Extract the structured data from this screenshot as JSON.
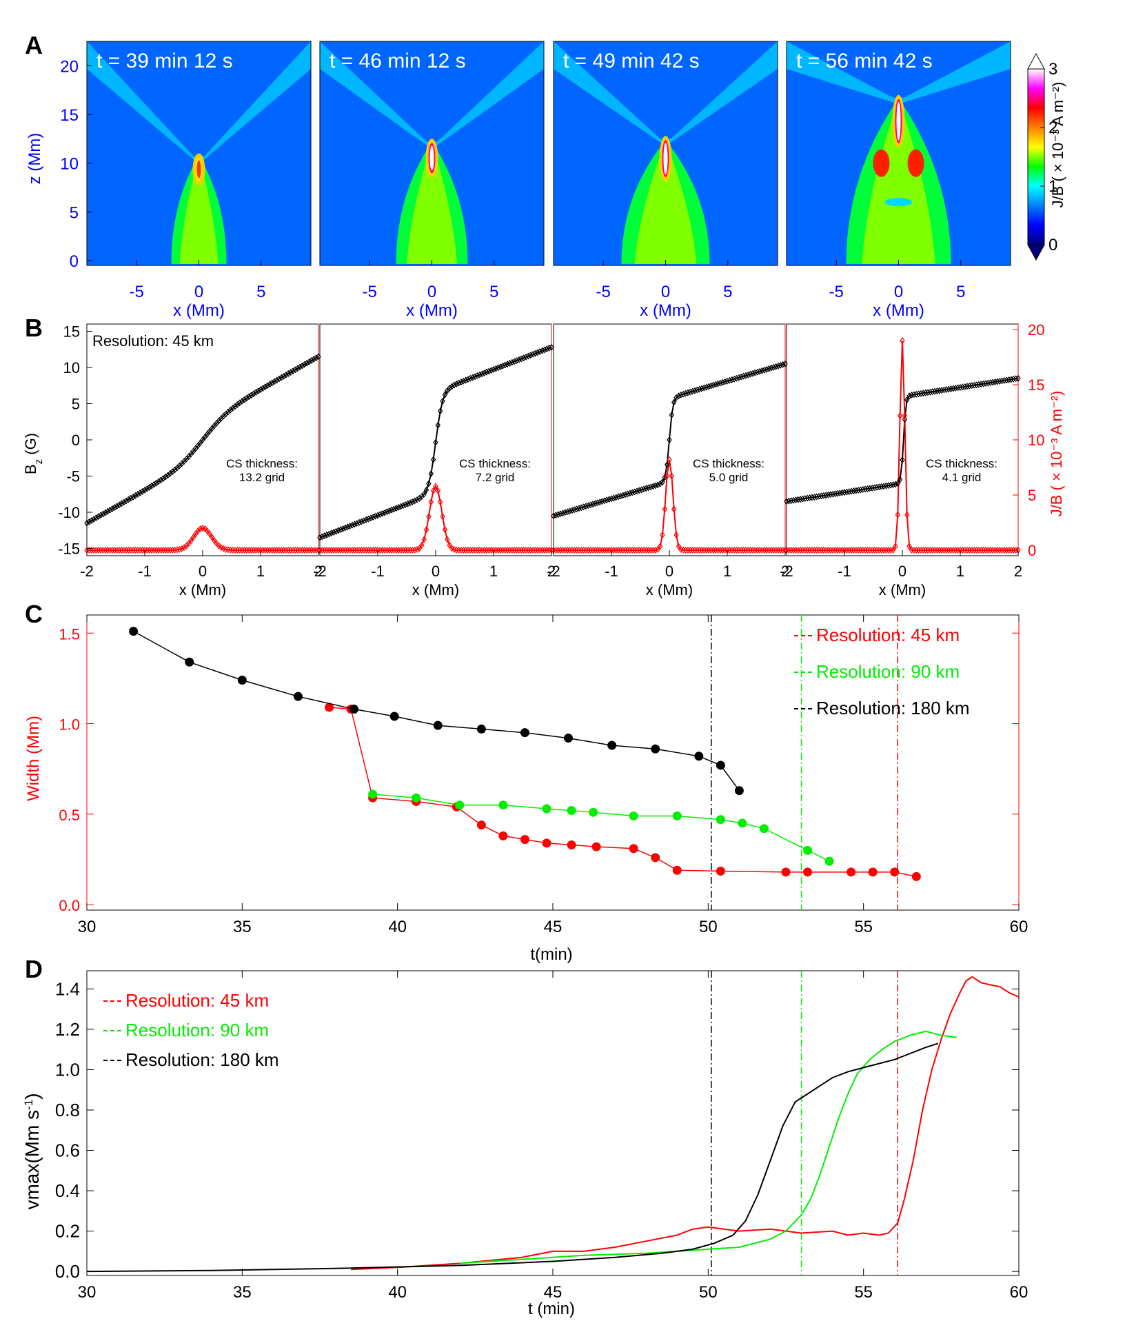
{
  "panel_labels": {
    "a": "A",
    "b": "B",
    "c": "C",
    "d": "D"
  },
  "colors": {
    "red": "#ff0000",
    "green": "#00ee00",
    "black": "#000000",
    "blue": "#0000ff"
  },
  "colormap": [
    "#00007f",
    "#0000ff",
    "#0080ff",
    "#00ffff",
    "#00ff00",
    "#ffff00",
    "#ff8000",
    "#ff0000",
    "#ff00ff",
    "#ffffff"
  ],
  "chart_data": [
    {
      "type": "heatmap",
      "panel": "A",
      "xlabel": "x (Mm)",
      "ylabel": "z (Mm)",
      "xticks": [
        "-5",
        "0",
        "5"
      ],
      "yticks": [
        "0",
        "5",
        "10",
        "15",
        "20"
      ],
      "xlim": [
        -9,
        9
      ],
      "ylim": [
        -0.5,
        22.5
      ],
      "colorbar": {
        "label": "J/B ( × 10⁻³ A m⁻²)",
        "ticks": [
          "0",
          "1",
          "2",
          "3"
        ],
        "range": [
          0,
          3
        ]
      },
      "frames": [
        {
          "label": "t = 39 min 12 s",
          "cs_top": 11,
          "cs_peak": 2.2
        },
        {
          "label": "t = 46 min 12 s",
          "cs_top": 12.5,
          "cs_peak": 3.2
        },
        {
          "label": "t = 49 min 42 s",
          "cs_top": 12.8,
          "cs_peak": 3.2
        },
        {
          "label": "t = 56 min 42 s",
          "cs_top": 17,
          "cs_peak": 3.2
        }
      ]
    },
    {
      "type": "line",
      "panel": "B",
      "xlabel": "x (Mm)",
      "xlim": [
        -2,
        2
      ],
      "xticks": [
        "-2",
        "-1",
        "0",
        "1",
        "2"
      ],
      "ylabel_left": "B_z (G)",
      "ylim_left": [
        -16,
        16
      ],
      "yticks_left": [
        "-15",
        "-10",
        "-5",
        "0",
        "5",
        "10",
        "15"
      ],
      "ylabel_right": "J/B ( × 10⁻³ A m⁻²)",
      "ylim_right": [
        -0.5,
        20.5
      ],
      "yticks_right": [
        "0",
        "5",
        "10",
        "15",
        "20"
      ],
      "annotation_resolution": "Resolution: 45 km",
      "cs_label": "CS thickness:",
      "frames": [
        {
          "thickness": "13.2 grid",
          "bz": {
            "left": -11.5,
            "right": 11.5,
            "jump": 5,
            "width": 0.45,
            "offset": 0.0
          },
          "jb": {
            "peak": 2,
            "width": 0.22,
            "floor": 0
          }
        },
        {
          "thickness": "7.2 grid",
          "bz": {
            "left": -13.5,
            "right": 12.8,
            "jump": 14,
            "width": 0.12,
            "offset": 0.0
          },
          "jb": {
            "peak": 5.8,
            "width": 0.15,
            "floor": 0
          }
        },
        {
          "thickness": "5.0 grid",
          "bz": {
            "left": -10.5,
            "right": 10.5,
            "jump": 11.5,
            "width": 0.06,
            "offset": 0.0
          },
          "jb": {
            "peak": 8.2,
            "width": 0.09,
            "floor": 0
          }
        },
        {
          "thickness": "4.1 grid",
          "bz": {
            "left": -8.5,
            "right": 8.5,
            "jump": 12,
            "width": 0.04,
            "offset": 0.02
          },
          "jb": {
            "peak": 19,
            "width": 0.06,
            "floor": 0
          }
        }
      ]
    },
    {
      "type": "scatter",
      "panel": "C",
      "xlabel": "t(min)",
      "ylabel": "Width (Mm)",
      "xlim": [
        30,
        60
      ],
      "ylim": [
        -0.03,
        1.6
      ],
      "xticks": [
        "30",
        "35",
        "40",
        "45",
        "50",
        "55",
        "60"
      ],
      "yticks": [
        "0.0",
        "0.5",
        "1.0",
        "1.5"
      ],
      "vlines": [
        50.1,
        53.0,
        56.1
      ],
      "series": [
        {
          "name": "Resolution:  45 km",
          "color": "red",
          "x": [
            37.8,
            38.5,
            39.2,
            40.6,
            41.9,
            42.7,
            43.4,
            44.1,
            44.8,
            45.6,
            46.4,
            47.6,
            48.3,
            49.0,
            50.4,
            52.5,
            53.2,
            54.6,
            55.3,
            56.0,
            56.7
          ],
          "y": [
            1.09,
            1.08,
            0.59,
            0.57,
            0.54,
            0.44,
            0.38,
            0.36,
            0.34,
            0.33,
            0.32,
            0.31,
            0.26,
            0.19,
            0.185,
            0.18,
            0.18,
            0.18,
            0.18,
            0.18,
            0.155
          ]
        },
        {
          "name": "Resolution: 90 km",
          "color": "green",
          "x": [
            39.2,
            40.6,
            42.0,
            43.4,
            44.8,
            45.6,
            46.3,
            47.6,
            49.0,
            50.4,
            51.1,
            51.8,
            53.2,
            53.9
          ],
          "y": [
            0.61,
            0.59,
            0.55,
            0.55,
            0.53,
            0.52,
            0.51,
            0.49,
            0.49,
            0.47,
            0.45,
            0.42,
            0.3,
            0.24
          ]
        },
        {
          "name": "Resolution: 180 km",
          "color": "black",
          "x": [
            31.5,
            33.3,
            35.0,
            36.8,
            38.6,
            39.9,
            41.3,
            42.7,
            44.1,
            45.5,
            46.9,
            48.3,
            49.7,
            50.4,
            51.0
          ],
          "y": [
            1.51,
            1.34,
            1.24,
            1.15,
            1.08,
            1.04,
            0.99,
            0.97,
            0.95,
            0.92,
            0.88,
            0.86,
            0.82,
            0.77,
            0.63
          ]
        }
      ]
    },
    {
      "type": "line",
      "panel": "D",
      "xlabel": "t (min)",
      "ylabel": "vmax(Mm s⁻¹)",
      "xlim": [
        30,
        60
      ],
      "ylim": [
        -0.02,
        1.49
      ],
      "xticks": [
        "30",
        "35",
        "40",
        "45",
        "50",
        "55",
        "60"
      ],
      "yticks": [
        "0.0",
        "0.2",
        "0.4",
        "0.6",
        "0.8",
        "1.0",
        "1.2",
        "1.4"
      ],
      "vlines": [
        50.1,
        53.0,
        56.1
      ],
      "series": [
        {
          "name": "Resolution:  45 km",
          "color": "red",
          "x": [
            38.5,
            40,
            42,
            44,
            45,
            46,
            47,
            48,
            49,
            49.5,
            50,
            50.5,
            51,
            52,
            53,
            54,
            54.5,
            55,
            55.5,
            55.8,
            56.1,
            56.3,
            56.6,
            56.9,
            57.2,
            57.5,
            57.8,
            58.1,
            58.3,
            58.5,
            58.8,
            59.1,
            59.4,
            59.7,
            60
          ],
          "y": [
            0.01,
            0.02,
            0.04,
            0.07,
            0.1,
            0.1,
            0.12,
            0.15,
            0.18,
            0.21,
            0.22,
            0.21,
            0.2,
            0.21,
            0.19,
            0.2,
            0.18,
            0.19,
            0.18,
            0.19,
            0.24,
            0.35,
            0.55,
            0.8,
            1.0,
            1.15,
            1.28,
            1.38,
            1.44,
            1.46,
            1.43,
            1.42,
            1.41,
            1.38,
            1.36
          ]
        },
        {
          "name": "Resolution: 90 km",
          "color": "green",
          "x": [
            42,
            44,
            46,
            48,
            49,
            50,
            51,
            52,
            52.5,
            53,
            53.3,
            53.6,
            53.9,
            54.2,
            54.5,
            54.8,
            55.2,
            55.6,
            56,
            56.5,
            57,
            57.5,
            58
          ],
          "y": [
            0.04,
            0.06,
            0.08,
            0.09,
            0.1,
            0.11,
            0.12,
            0.16,
            0.2,
            0.28,
            0.36,
            0.48,
            0.62,
            0.76,
            0.88,
            0.98,
            1.05,
            1.1,
            1.14,
            1.17,
            1.19,
            1.17,
            1.16
          ]
        },
        {
          "name": "Resolution: 180 km",
          "color": "black",
          "x": [
            30,
            34,
            38,
            42,
            45,
            47,
            48.5,
            49.5,
            50.2,
            50.8,
            51.2,
            51.6,
            52,
            52.4,
            52.8,
            53.2,
            53.6,
            54,
            54.5,
            55,
            55.5,
            56,
            56.5,
            57,
            57.4
          ],
          "y": [
            0,
            0.005,
            0.015,
            0.03,
            0.05,
            0.07,
            0.09,
            0.11,
            0.14,
            0.18,
            0.25,
            0.38,
            0.55,
            0.72,
            0.84,
            0.88,
            0.92,
            0.96,
            0.99,
            1.01,
            1.03,
            1.05,
            1.08,
            1.11,
            1.13
          ]
        }
      ]
    }
  ]
}
